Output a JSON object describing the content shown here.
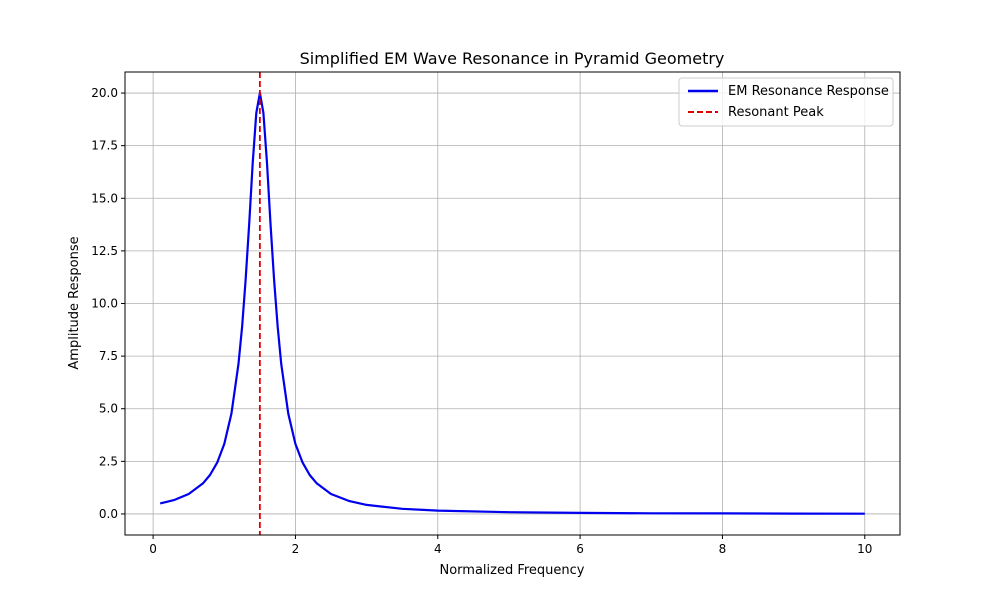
{
  "chart_data": {
    "type": "line",
    "title": "Simplified EM Wave Resonance in Pyramid Geometry",
    "xlabel": "Normalized Frequency",
    "ylabel": "Amplitude Response",
    "xlim": [
      -0.395,
      10.495
    ],
    "ylim": [
      -1,
      21
    ],
    "xticks": [
      0,
      2,
      4,
      6,
      8,
      10
    ],
    "xtick_labels": [
      "0",
      "2",
      "4",
      "6",
      "8",
      "10"
    ],
    "yticks": [
      0,
      2.5,
      5,
      7.5,
      10,
      12.5,
      15,
      17.5,
      20
    ],
    "ytick_labels": [
      "0.0",
      "2.5",
      "5.0",
      "7.5",
      "10.0",
      "12.5",
      "15.0",
      "17.5",
      "20.0"
    ],
    "grid": true,
    "legend_position": "top-right",
    "series": [
      {
        "name": "EM Resonance Response",
        "color": "#0000ee",
        "style": "solid",
        "x": [
          0.1,
          0.3,
          0.5,
          0.7,
          0.8,
          0.9,
          1.0,
          1.1,
          1.2,
          1.25,
          1.3,
          1.35,
          1.4,
          1.45,
          1.5,
          1.55,
          1.6,
          1.65,
          1.7,
          1.75,
          1.8,
          1.9,
          2.0,
          2.1,
          2.2,
          2.3,
          2.5,
          2.75,
          3,
          3.5,
          4,
          5,
          6,
          7,
          8,
          9,
          10
        ],
        "y": [
          0.5,
          0.67,
          0.95,
          1.45,
          1.85,
          2.44,
          3.33,
          4.76,
          7.14,
          8.89,
          11.11,
          13.79,
          16.67,
          19.05,
          20,
          19.05,
          16.67,
          13.79,
          11.11,
          8.89,
          7.14,
          4.76,
          3.33,
          2.44,
          1.85,
          1.45,
          0.95,
          0.62,
          0.43,
          0.247,
          0.159,
          0.081,
          0.049,
          0.033,
          0.024,
          0.018,
          0.014
        ]
      },
      {
        "name": "Resonant Peak",
        "color": "#dd0000",
        "style": "dashed",
        "vline_x": 1.5
      }
    ]
  }
}
